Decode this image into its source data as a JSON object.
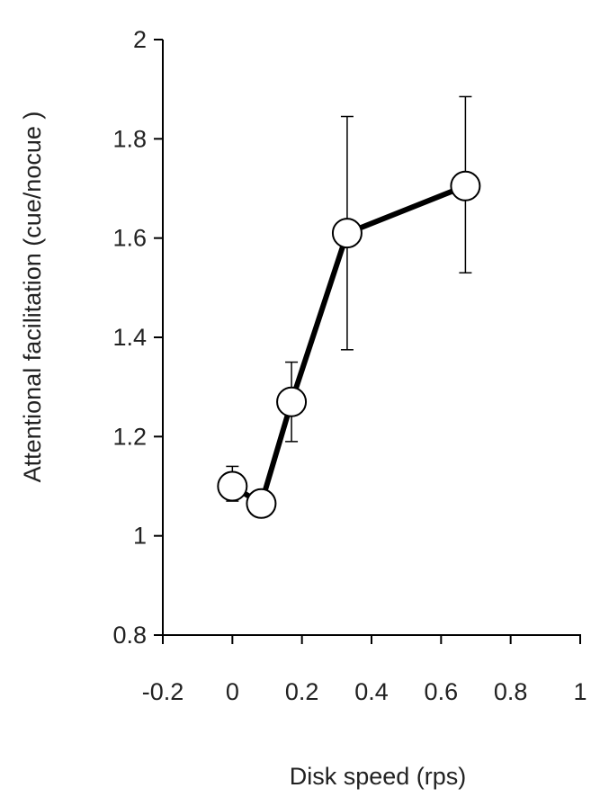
{
  "chart_data": {
    "type": "line",
    "xlabel": "Disk speed (rps)",
    "ylabel": "Attentional facilitation (cue/nocue )",
    "xlim": [
      -0.2,
      1
    ],
    "ylim": [
      0.8,
      2
    ],
    "x_ticks": [
      "-0.2",
      "0",
      "0.2",
      "0.4",
      "0.6",
      "0.8",
      "1"
    ],
    "y_ticks": [
      "0.8",
      "1",
      "1.2",
      "1.4",
      "1.6",
      "1.8",
      "2"
    ],
    "grid": false,
    "series": [
      {
        "points": [
          {
            "x": 0.0,
            "y": 1.1,
            "err_low": 1.07,
            "err_high": 1.14
          },
          {
            "x": 0.083,
            "y": 1.065,
            "err_low": 1.065,
            "err_high": 1.065
          },
          {
            "x": 0.17,
            "y": 1.27,
            "err_low": 1.19,
            "err_high": 1.35
          },
          {
            "x": 0.33,
            "y": 1.61,
            "err_low": 1.375,
            "err_high": 1.845
          },
          {
            "x": 0.67,
            "y": 1.705,
            "err_low": 1.53,
            "err_high": 1.885
          }
        ]
      }
    ],
    "colors": {
      "line": "#000000",
      "marker_fill": "#ffffff",
      "marker_stroke": "#000000"
    }
  }
}
